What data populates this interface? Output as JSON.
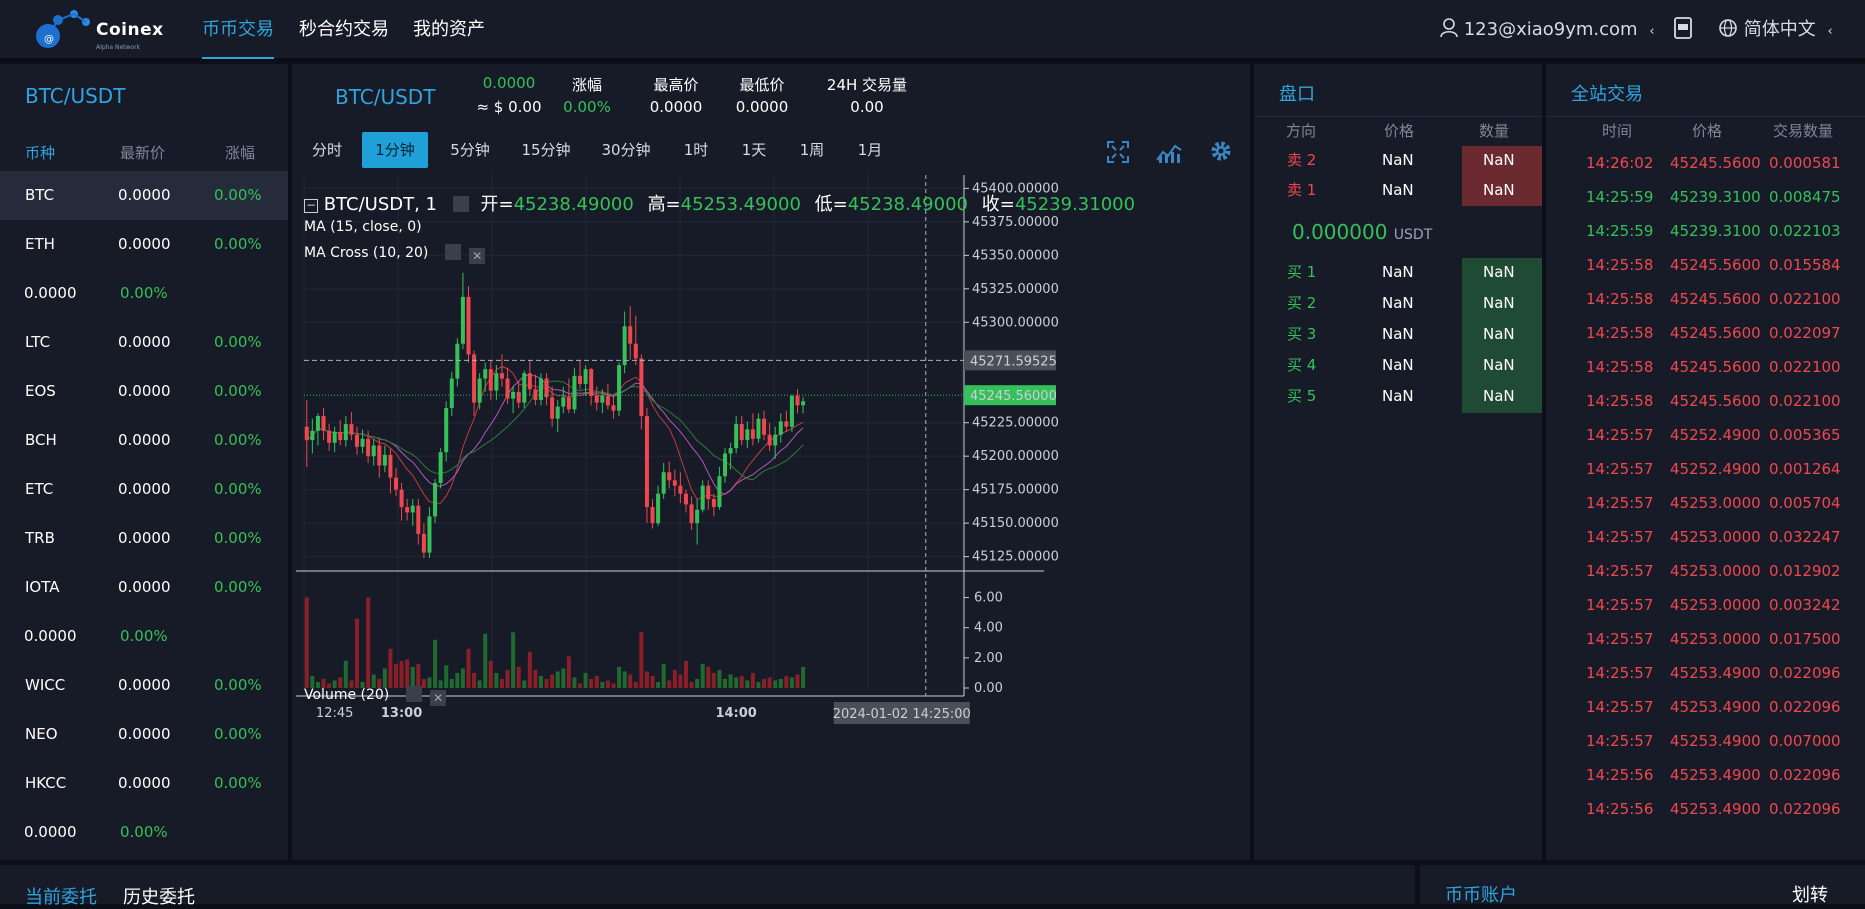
{
  "colors": {
    "accent": "#2fa4e0",
    "up": "#35c05a",
    "down": "#f0474f",
    "panel_bg": "#171b27",
    "page_bg": "#0c0f17"
  },
  "brand": {
    "name": "Coinex",
    "subtitle": "Alpha Network",
    "logo_icon": "molecule-logo-icon"
  },
  "nav": {
    "items": [
      {
        "label": "币币交易",
        "active": true
      },
      {
        "label": "秒合约交易",
        "active": false
      },
      {
        "label": "我的资产",
        "active": false
      }
    ]
  },
  "user": {
    "email": "123@xiao9ym.com",
    "user_icon": "user-icon",
    "app_icon": "app-download-icon",
    "globe_icon": "globe-icon",
    "language": "简体中文"
  },
  "market_list": {
    "title": "BTC/USDT",
    "headers": [
      "币种",
      "最新价",
      "涨幅"
    ],
    "rows": [
      {
        "symbol": "BTC",
        "price": "0.0000",
        "change": "0.00%"
      },
      {
        "symbol": "ETH",
        "price": "0.0000",
        "change": "0.00%"
      },
      {
        "symbol": "",
        "price": "0.0000",
        "change": "0.00%"
      },
      {
        "symbol": "LTC",
        "price": "0.0000",
        "change": "0.00%"
      },
      {
        "symbol": "EOS",
        "price": "0.0000",
        "change": "0.00%"
      },
      {
        "symbol": "BCH",
        "price": "0.0000",
        "change": "0.00%"
      },
      {
        "symbol": "ETC",
        "price": "0.0000",
        "change": "0.00%"
      },
      {
        "symbol": "TRB",
        "price": "0.0000",
        "change": "0.00%"
      },
      {
        "symbol": "IOTA",
        "price": "0.0000",
        "change": "0.00%"
      },
      {
        "symbol": "",
        "price": "0.0000",
        "change": "0.00%"
      },
      {
        "symbol": "WICC",
        "price": "0.0000",
        "change": "0.00%"
      },
      {
        "symbol": "NEO",
        "price": "0.0000",
        "change": "0.00%"
      },
      {
        "symbol": "HKCC",
        "price": "0.0000",
        "change": "0.00%"
      },
      {
        "symbol": "",
        "price": "0.0000",
        "change": "0.00%"
      }
    ]
  },
  "ticker": {
    "pair": "BTC/USDT",
    "last_price": "0.0000",
    "last_price_usd": "≈ $ 0.00",
    "change_label": "涨幅",
    "change_value": "0.00%",
    "high_label": "最高价",
    "high_value": "0.0000",
    "low_label": "最低价",
    "low_value": "0.0000",
    "volume_label": "24H 交易量",
    "volume_value": "0.00"
  },
  "timeframes": [
    "分时",
    "1分钟",
    "5分钟",
    "15分钟",
    "30分钟",
    "1时",
    "1天",
    "1周",
    "1月"
  ],
  "active_timeframe": "1分钟",
  "chart_tools": {
    "fullscreen_icon": "fullscreen-icon",
    "indicator_icon": "indicator-chart-icon",
    "settings_icon": "gear-icon"
  },
  "chart_data": {
    "type": "candlestick",
    "symbol_title": "BTC/USDT, 1",
    "ohlc_legend": {
      "open_label": "开=",
      "open": "45238.49000",
      "high_label": "高=",
      "high": "45253.49000",
      "low_label": "低=",
      "low": "45238.49000",
      "close_label": "收=",
      "close": "45239.31000"
    },
    "studies": [
      "MA (15, close, 0)",
      "MA Cross (10, 20)"
    ],
    "volume_study": "Volume (20)",
    "y_ticks": [
      "45400.00000",
      "45375.00000",
      "45350.00000",
      "45325.00000",
      "45300.00000",
      "45225.00000",
      "45200.00000",
      "45175.00000",
      "45150.00000",
      "45125.00000"
    ],
    "y_tick_values": [
      45400,
      45375,
      45350,
      45325,
      45300,
      45225,
      45200,
      45175,
      45150,
      45125
    ],
    "ylim": [
      45115,
      45410
    ],
    "crosshair_price": "45271.59525",
    "crosshair_value": 45271.59525,
    "last_price_label": "45245.56000",
    "last_price_value": 45245.56,
    "volume_ticks": [
      "6.00",
      "4.00",
      "2.00",
      "0.00"
    ],
    "volume_tick_values": [
      6,
      4,
      2,
      0
    ],
    "volume_ylim": [
      0,
      6.5
    ],
    "x_ticks": [
      "12:45",
      "13:00",
      "14:00"
    ],
    "x_tick_index": [
      5,
      17,
      77
    ],
    "crosshair_time": "2024-01-02 14:25:00",
    "crosshair_index": 111,
    "candles": [
      [
        45222,
        45242,
        45192,
        45212
      ],
      [
        45212,
        45228,
        45202,
        45219
      ],
      [
        45219,
        45232,
        45208,
        45230
      ],
      [
        45230,
        45236,
        45212,
        45219
      ],
      [
        45219,
        45224,
        45204,
        45210
      ],
      [
        45210,
        45222,
        45203,
        45218
      ],
      [
        45218,
        45227,
        45208,
        45212
      ],
      [
        45212,
        45230,
        45207,
        45224
      ],
      [
        45224,
        45233,
        45212,
        45216
      ],
      [
        45216,
        45222,
        45201,
        45207
      ],
      [
        45207,
        45220,
        45202,
        45213
      ],
      [
        45213,
        45219,
        45195,
        45200
      ],
      [
        45200,
        45213,
        45193,
        45208
      ],
      [
        45208,
        45214,
        45184,
        45193
      ],
      [
        45193,
        45208,
        45188,
        45201
      ],
      [
        45201,
        45206,
        45172,
        45184
      ],
      [
        45184,
        45191,
        45170,
        45175
      ],
      [
        45175,
        45180,
        45152,
        45162
      ],
      [
        45162,
        45168,
        45152,
        45158
      ],
      [
        45158,
        45168,
        45148,
        45163
      ],
      [
        45163,
        45168,
        45134,
        45142
      ],
      [
        45142,
        45150,
        45124,
        45128
      ],
      [
        45128,
        45162,
        45124,
        45155
      ],
      [
        45155,
        45183,
        45150,
        45180
      ],
      [
        45180,
        45206,
        45176,
        45203
      ],
      [
        45203,
        45241,
        45196,
        45236
      ],
      [
        45236,
        45263,
        45230,
        45258
      ],
      [
        45258,
        45288,
        45252,
        45284
      ],
      [
        45284,
        45337,
        45280,
        45319
      ],
      [
        45319,
        45327,
        45270,
        45276
      ],
      [
        45276,
        45279,
        45230,
        45240
      ],
      [
        45240,
        45262,
        45235,
        45258
      ],
      [
        45258,
        45270,
        45248,
        45265
      ],
      [
        45265,
        45271,
        45242,
        45249
      ],
      [
        45249,
        45268,
        45242,
        45262
      ],
      [
        45262,
        45276,
        45252,
        45258
      ],
      [
        45258,
        45266,
        45239,
        45243
      ],
      [
        45243,
        45252,
        45232,
        45248
      ],
      [
        45248,
        45256,
        45236,
        45240
      ],
      [
        45240,
        45264,
        45236,
        45262
      ],
      [
        45262,
        45272,
        45245,
        45250
      ],
      [
        45250,
        45261,
        45238,
        45242
      ],
      [
        45242,
        45262,
        45238,
        45258
      ],
      [
        45258,
        45262,
        45238,
        45244
      ],
      [
        45244,
        45252,
        45222,
        45228
      ],
      [
        45228,
        45242,
        45218,
        45237
      ],
      [
        45237,
        45252,
        45232,
        45244
      ],
      [
        45244,
        45258,
        45232,
        45235
      ],
      [
        45235,
        45266,
        45232,
        45260
      ],
      [
        45260,
        45272,
        45250,
        45254
      ],
      [
        45254,
        45268,
        45245,
        45265
      ],
      [
        45265,
        45266,
        45238,
        45245
      ],
      [
        45245,
        45252,
        45234,
        45240
      ],
      [
        45240,
        45250,
        45232,
        45245
      ],
      [
        45245,
        45254,
        45235,
        45238
      ],
      [
        45238,
        45246,
        45228,
        45234
      ],
      [
        45234,
        45270,
        45230,
        45268
      ],
      [
        45268,
        45308,
        45262,
        45297
      ],
      [
        45297,
        45312,
        45272,
        45284
      ],
      [
        45284,
        45305,
        45268,
        45273
      ],
      [
        45273,
        45276,
        45220,
        45230
      ],
      [
        45230,
        45236,
        45150,
        45162
      ],
      [
        45162,
        45168,
        45146,
        45150
      ],
      [
        45150,
        45178,
        45148,
        45172
      ],
      [
        45172,
        45195,
        45168,
        45188
      ],
      [
        45188,
        45196,
        45176,
        45182
      ],
      [
        45182,
        45190,
        45170,
        45178
      ],
      [
        45178,
        45188,
        45165,
        45172
      ],
      [
        45172,
        45175,
        45158,
        45164
      ],
      [
        45164,
        45170,
        45145,
        45150
      ],
      [
        45150,
        45168,
        45134,
        45160
      ],
      [
        45160,
        45182,
        45158,
        45178
      ],
      [
        45178,
        45182,
        45160,
        45168
      ],
      [
        45168,
        45172,
        45155,
        45162
      ],
      [
        45162,
        45192,
        45160,
        45185
      ],
      [
        45185,
        45206,
        45180,
        45202
      ],
      [
        45202,
        45210,
        45190,
        45206
      ],
      [
        45206,
        45230,
        45202,
        45224
      ],
      [
        45224,
        45230,
        45208,
        45212
      ],
      [
        45212,
        45226,
        45206,
        45220
      ],
      [
        45220,
        45232,
        45208,
        45213
      ],
      [
        45213,
        45232,
        45210,
        45228
      ],
      [
        45228,
        45234,
        45212,
        45216
      ],
      [
        45216,
        45225,
        45204,
        45208
      ],
      [
        45208,
        45222,
        45198,
        45216
      ],
      [
        45216,
        45232,
        45210,
        45226
      ],
      [
        45226,
        45234,
        45218,
        45222
      ],
      [
        45222,
        45246,
        45218,
        45245
      ],
      [
        45245,
        45250,
        45232,
        45238
      ],
      [
        45238,
        45244,
        45232,
        45241
      ]
    ],
    "volumes": [
      6.0,
      0.8,
      0.4,
      0.6,
      0.3,
      0.5,
      0.7,
      1.8,
      0.5,
      4.6,
      0.4,
      6.0,
      0.9,
      0.6,
      1.3,
      2.6,
      1.6,
      1.8,
      1.9,
      1.4,
      1.6,
      0.6,
      0.7,
      3.2,
      0.5,
      1.5,
      0.6,
      1.0,
      1.3,
      2.6,
      1.0,
      0.5,
      3.6,
      1.8,
      1.0,
      0.6,
      1.2,
      3.7,
      1.4,
      0.5,
      2.4,
      1.2,
      0.8,
      0.6,
      0.9,
      1.1,
      1.3,
      2.1,
      0.7,
      0.3,
      1.0,
      0.6,
      0.8,
      0.4,
      0.5,
      0.3,
      1.4,
      1.1,
      0.9,
      0.4,
      3.7,
      1.1,
      0.8,
      0.4,
      1.6,
      0.5,
      1.2,
      0.9,
      1.8,
      0.4,
      0.6,
      1.6,
      1.4,
      1.0,
      1.2,
      0.6,
      0.9,
      0.7,
      0.8,
      0.5,
      1.0,
      0.4,
      0.6,
      0.7,
      0.5,
      0.6,
      0.8,
      0.7,
      0.9,
      1.4
    ]
  },
  "orderbook": {
    "title": "盘口",
    "headers": [
      "方向",
      "价格",
      "数量"
    ],
    "asks": [
      {
        "side": "卖 2",
        "price": "NaN",
        "amount": "NaN"
      },
      {
        "side": "卖 1",
        "price": "NaN",
        "amount": "NaN"
      }
    ],
    "mid_price": "0.000000",
    "mid_unit": "USDT",
    "bids": [
      {
        "side": "买 1",
        "price": "NaN",
        "amount": "NaN"
      },
      {
        "side": "买 2",
        "price": "NaN",
        "amount": "NaN"
      },
      {
        "side": "买 3",
        "price": "NaN",
        "amount": "NaN"
      },
      {
        "side": "买 4",
        "price": "NaN",
        "amount": "NaN"
      },
      {
        "side": "买 5",
        "price": "NaN",
        "amount": "NaN"
      }
    ]
  },
  "trades": {
    "title": "全站交易",
    "headers": [
      "时间",
      "价格",
      "交易数量"
    ],
    "rows": [
      {
        "time": "14:26:02",
        "price": "45245.5600",
        "amount": "0.000581",
        "side": "sell"
      },
      {
        "time": "14:25:59",
        "price": "45239.3100",
        "amount": "0.008475",
        "side": "buy"
      },
      {
        "time": "14:25:59",
        "price": "45239.3100",
        "amount": "0.022103",
        "side": "buy"
      },
      {
        "time": "14:25:58",
        "price": "45245.5600",
        "amount": "0.015584",
        "side": "sell"
      },
      {
        "time": "14:25:58",
        "price": "45245.5600",
        "amount": "0.022100",
        "side": "sell"
      },
      {
        "time": "14:25:58",
        "price": "45245.5600",
        "amount": "0.022097",
        "side": "sell"
      },
      {
        "time": "14:25:58",
        "price": "45245.5600",
        "amount": "0.022100",
        "side": "sell"
      },
      {
        "time": "14:25:58",
        "price": "45245.5600",
        "amount": "0.022100",
        "side": "sell"
      },
      {
        "time": "14:25:57",
        "price": "45252.4900",
        "amount": "0.005365",
        "side": "sell"
      },
      {
        "time": "14:25:57",
        "price": "45252.4900",
        "amount": "0.001264",
        "side": "sell"
      },
      {
        "time": "14:25:57",
        "price": "45253.0000",
        "amount": "0.005704",
        "side": "sell"
      },
      {
        "time": "14:25:57",
        "price": "45253.0000",
        "amount": "0.032247",
        "side": "sell"
      },
      {
        "time": "14:25:57",
        "price": "45253.0000",
        "amount": "0.012902",
        "side": "sell"
      },
      {
        "time": "14:25:57",
        "price": "45253.0000",
        "amount": "0.003242",
        "side": "sell"
      },
      {
        "time": "14:25:57",
        "price": "45253.0000",
        "amount": "0.017500",
        "side": "sell"
      },
      {
        "time": "14:25:57",
        "price": "45253.4900",
        "amount": "0.022096",
        "side": "sell"
      },
      {
        "time": "14:25:57",
        "price": "45253.4900",
        "amount": "0.022096",
        "side": "sell"
      },
      {
        "time": "14:25:57",
        "price": "45253.4900",
        "amount": "0.007000",
        "side": "sell"
      },
      {
        "time": "14:25:56",
        "price": "45253.4900",
        "amount": "0.022096",
        "side": "sell"
      },
      {
        "time": "14:25:56",
        "price": "45253.4900",
        "amount": "0.022096",
        "side": "sell"
      }
    ]
  },
  "bottom": {
    "tabs": [
      {
        "label": "当前委托",
        "active": true
      },
      {
        "label": "历史委托",
        "active": false
      }
    ],
    "account_title": "币币账户",
    "transfer_label": "划转"
  }
}
